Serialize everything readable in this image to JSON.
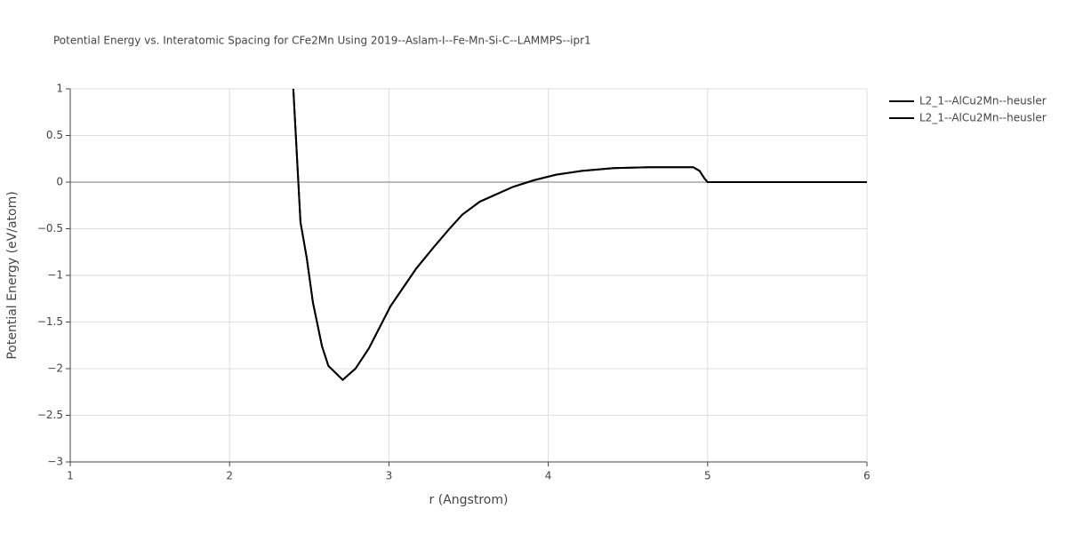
{
  "chart_data": {
    "type": "line",
    "title": "Potential Energy vs. Interatomic Spacing for CFe2Mn Using 2019--Aslam-I--Fe-Mn-Si-C--LAMMPS--ipr1",
    "xlabel": "r (Angstrom)",
    "ylabel": "Potential Energy (eV/atom)",
    "x": [
      2.4,
      2.445,
      2.484,
      2.523,
      2.58,
      2.62,
      2.71,
      2.79,
      2.875,
      3.01,
      3.17,
      3.28,
      3.38,
      3.46,
      3.57,
      3.78,
      3.91,
      4.05,
      4.21,
      4.41,
      4.63,
      4.91,
      4.95,
      4.98,
      5.0,
      5.5,
      6.0
    ],
    "series": [
      {
        "name": "L2_1--AlCu2Mn--heusler",
        "color": "#000000",
        "values": [
          1,
          -0.43,
          -0.81,
          -1.29,
          -1.76,
          -1.97,
          -2.12,
          -2.0,
          -1.78,
          -1.33,
          -0.93,
          -0.7,
          -0.5,
          -0.35,
          -0.21,
          -0.05,
          0.02,
          0.08,
          0.12,
          0.15,
          0.16,
          0.16,
          0.12,
          0.04,
          0,
          0,
          0
        ]
      },
      {
        "name": "L2_1--AlCu2Mn--heusler",
        "color": "#000000",
        "values": [
          1,
          -0.43,
          -0.81,
          -1.29,
          -1.76,
          -1.97,
          -2.12,
          -2.0,
          -1.78,
          -1.33,
          -0.93,
          -0.7,
          -0.5,
          -0.35,
          -0.21,
          -0.05,
          0.02,
          0.08,
          0.12,
          0.15,
          0.16,
          0.16,
          0.12,
          0.04,
          0,
          0,
          0
        ]
      }
    ],
    "xlim": [
      1,
      6
    ],
    "xticks": [
      1,
      2,
      3,
      4,
      5,
      6
    ],
    "ylim": [
      -3,
      1
    ],
    "yticks": [
      {
        "value": -3,
        "label": "−3"
      },
      {
        "value": -2.5,
        "label": "−2.5"
      },
      {
        "value": -2,
        "label": "−2"
      },
      {
        "value": -1.5,
        "label": "−1.5"
      },
      {
        "value": -1,
        "label": "−1"
      },
      {
        "value": -0.5,
        "label": "−0.5"
      },
      0,
      0.5,
      1
    ],
    "grid": true,
    "legend": "top-right"
  }
}
